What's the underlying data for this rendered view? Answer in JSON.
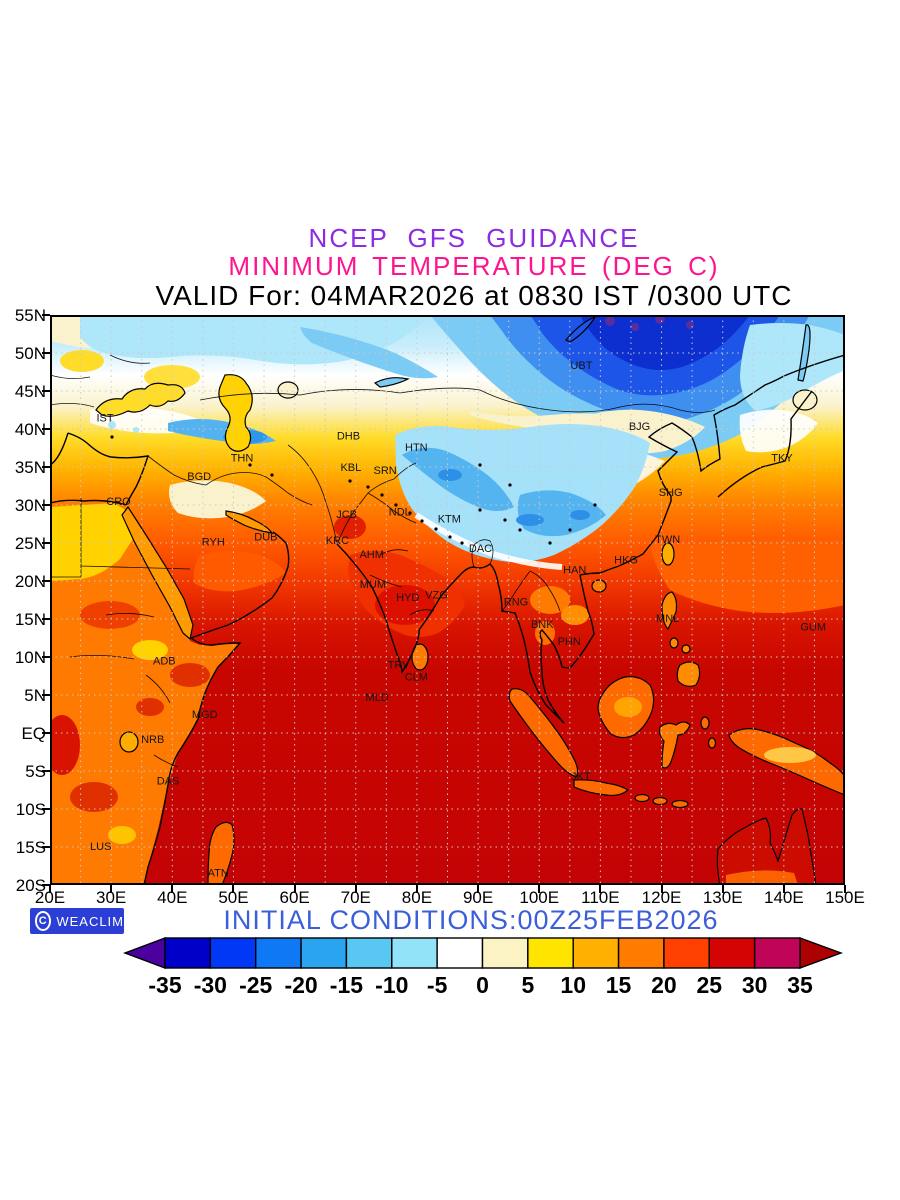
{
  "titles": {
    "line1": "NCEP GFS GUIDANCE",
    "line2": "MINIMUM TEMPERATURE (DEG C)",
    "line3": "VALID For: 04MAR2026 at 0830 IST /0300 UTC",
    "line1_color": "#8B2BE2",
    "line2_color": "#FF1490",
    "line3_color": "#000000"
  },
  "footer": {
    "logo_text": "WEACLIM",
    "logo_icon": "C",
    "logo_bg": "#2B3FD6",
    "initial_conditions": "INITIAL CONDITIONS:00Z25FEB2026",
    "initial_conditions_color": "#3A5FD9"
  },
  "axes": {
    "lat_labels": [
      "55N",
      "50N",
      "45N",
      "40N",
      "35N",
      "30N",
      "25N",
      "20N",
      "15N",
      "10N",
      "5N",
      "EQ",
      "5S",
      "10S",
      "15S",
      "20S"
    ],
    "lat_values": [
      55,
      50,
      45,
      40,
      35,
      30,
      25,
      20,
      15,
      10,
      5,
      0,
      -5,
      -10,
      -15,
      -20
    ],
    "lon_labels": [
      "20E",
      "30E",
      "40E",
      "50E",
      "60E",
      "70E",
      "80E",
      "90E",
      "100E",
      "110E",
      "120E",
      "130E",
      "140E",
      "150E"
    ],
    "lon_values": [
      20,
      30,
      40,
      50,
      60,
      70,
      80,
      90,
      100,
      110,
      120,
      130,
      140,
      150
    ],
    "lat_range": [
      55,
      -20
    ],
    "lon_range": [
      20,
      150
    ],
    "grid_step_deg": 5
  },
  "colorbar": {
    "tick_labels": [
      "-35",
      "-30",
      "-25",
      "-20",
      "-15",
      "-10",
      "-5",
      "0",
      "5",
      "10",
      "15",
      "20",
      "25",
      "30",
      "35"
    ],
    "segment_colors": [
      "#0000C8",
      "#0038F5",
      "#0F78F5",
      "#2BA4F0",
      "#58C8F2",
      "#93E3F8",
      "#FFFFFF",
      "#FBF3C4",
      "#FFE400",
      "#FFB000",
      "#FF7C00",
      "#FF4000",
      "#D40404",
      "#C00458"
    ],
    "left_arrow_color": "#4B00A0",
    "right_arrow_color": "#AD0000"
  },
  "stations": [
    {
      "id": "IST",
      "lon": 29.0,
      "lat": 41.0
    },
    {
      "id": "THN",
      "lon": 51.4,
      "lat": 35.7
    },
    {
      "id": "BGD",
      "lon": 44.4,
      "lat": 33.3
    },
    {
      "id": "CRO",
      "lon": 31.2,
      "lat": 30.0
    },
    {
      "id": "RYH",
      "lon": 46.7,
      "lat": 24.7
    },
    {
      "id": "DUB",
      "lon": 55.3,
      "lat": 25.3
    },
    {
      "id": "DHB",
      "lon": 68.8,
      "lat": 38.6
    },
    {
      "id": "HTN",
      "lon": 79.9,
      "lat": 37.1
    },
    {
      "id": "KBL",
      "lon": 69.2,
      "lat": 34.5
    },
    {
      "id": "SRN",
      "lon": 74.8,
      "lat": 34.1
    },
    {
      "id": "JCB",
      "lon": 68.5,
      "lat": 28.3
    },
    {
      "id": "NDL",
      "lon": 77.2,
      "lat": 28.6
    },
    {
      "id": "KTM",
      "lon": 85.3,
      "lat": 27.7
    },
    {
      "id": "KRC",
      "lon": 67.0,
      "lat": 24.9
    },
    {
      "id": "AHM",
      "lon": 72.6,
      "lat": 23.0
    },
    {
      "id": "MUM",
      "lon": 72.8,
      "lat": 19.1
    },
    {
      "id": "HYD",
      "lon": 78.5,
      "lat": 17.4
    },
    {
      "id": "VZG",
      "lon": 83.2,
      "lat": 17.7
    },
    {
      "id": "DAC",
      "lon": 90.4,
      "lat": 23.8
    },
    {
      "id": "RNG",
      "lon": 96.2,
      "lat": 16.8
    },
    {
      "id": "BNK",
      "lon": 100.5,
      "lat": 13.8
    },
    {
      "id": "PHN",
      "lon": 104.9,
      "lat": 11.6
    },
    {
      "id": "HAN",
      "lon": 105.8,
      "lat": 21.0
    },
    {
      "id": "HKG",
      "lon": 114.2,
      "lat": 22.3
    },
    {
      "id": "TWN",
      "lon": 121.0,
      "lat": 25.0
    },
    {
      "id": "SHG",
      "lon": 121.5,
      "lat": 31.2
    },
    {
      "id": "BJG",
      "lon": 116.4,
      "lat": 39.9
    },
    {
      "id": "TKY",
      "lon": 139.7,
      "lat": 35.7
    },
    {
      "id": "UBT",
      "lon": 106.9,
      "lat": 47.9
    },
    {
      "id": "GUM",
      "lon": 144.8,
      "lat": 13.5
    },
    {
      "id": "MNL",
      "lon": 121.0,
      "lat": 14.6
    },
    {
      "id": "TRV",
      "lon": 77.0,
      "lat": 8.5
    },
    {
      "id": "CLM",
      "lon": 79.9,
      "lat": 6.9
    },
    {
      "id": "MLD",
      "lon": 73.5,
      "lat": 4.2
    },
    {
      "id": "JKT",
      "lon": 106.8,
      "lat": -6.2
    },
    {
      "id": "ADB",
      "lon": 38.7,
      "lat": 9.0
    },
    {
      "id": "MGD",
      "lon": 45.3,
      "lat": 2.0
    },
    {
      "id": "NRB",
      "lon": 36.8,
      "lat": -1.3
    },
    {
      "id": "DAS",
      "lon": 39.3,
      "lat": -6.8
    },
    {
      "id": "LUS",
      "lon": 28.3,
      "lat": -15.4
    },
    {
      "id": "ATN",
      "lon": 47.5,
      "lat": -18.9
    }
  ],
  "palette": {
    "ocean_deep_red": "#C40404",
    "band_red": "#D81400",
    "band_orange_red": "#FF5A00",
    "band_orange": "#FF8200",
    "band_gold": "#FFB400",
    "band_yellow": "#FFDC28",
    "band_cream": "#FAF2CC",
    "band_white": "#FFFFFF",
    "band_light_cyan": "#AEE6FA",
    "band_cyan": "#7CCBF5",
    "band_mid_blue": "#3E8FF0",
    "band_blue": "#1C55E8",
    "band_dark_blue": "#0D2FD0",
    "cold_purple": "#5B2E9E",
    "land_orange": "#FF7A00",
    "island_orange": "#FF6A00",
    "island_core": "#FFAE00",
    "australia_red": "#CC0C00",
    "hot_core_red": "#DC1000",
    "sea_strip_orange": "#FF9A00",
    "egypt_yellow": "#FFD200"
  }
}
